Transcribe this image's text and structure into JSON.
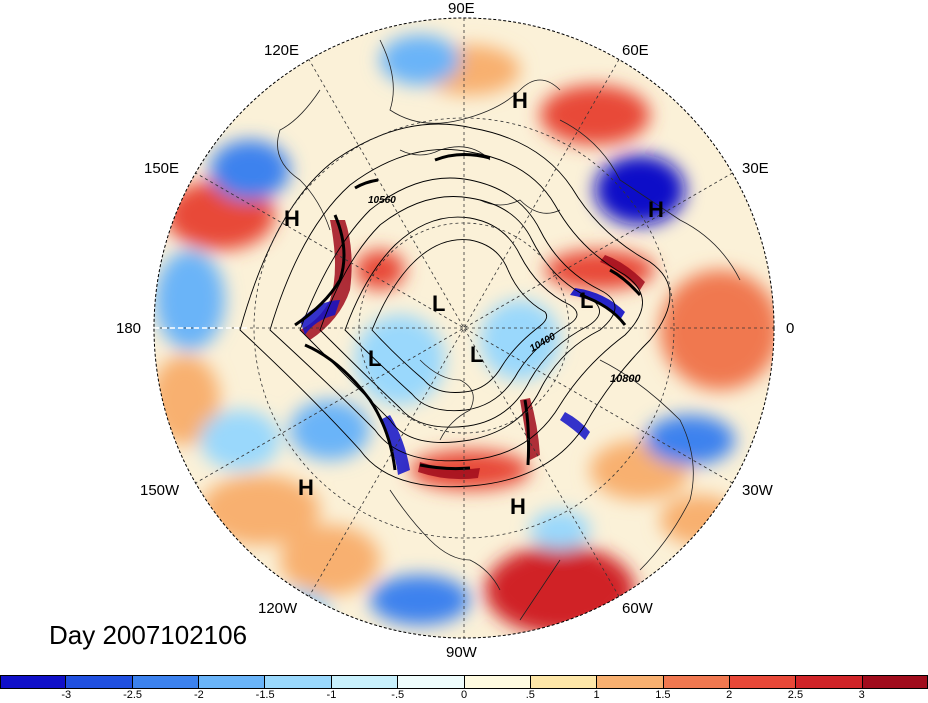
{
  "map": {
    "projection": "north-polar-stereographic",
    "day_label": "Day 2007102106",
    "longitude_labels": [
      "90E",
      "60E",
      "30E",
      "0",
      "30W",
      "60W",
      "90W",
      "120W",
      "150W",
      "180",
      "150E",
      "120E"
    ],
    "contour_labels": [
      "10560",
      "10400",
      "10800"
    ],
    "highs": [
      "H",
      "H",
      "H",
      "H",
      "H"
    ],
    "lows": [
      "L",
      "L",
      "L",
      "L"
    ]
  },
  "colorbar": {
    "colors": [
      "#1010c8",
      "#2050e0",
      "#3c82ee",
      "#6ab4f8",
      "#9ad8fc",
      "#c8f0fc",
      "#eefcfc",
      "#fefae0",
      "#fde6a8",
      "#f8b070",
      "#f07850",
      "#e84838",
      "#d02428",
      "#a00c1c"
    ],
    "tick_labels": [
      "-3",
      "-2.5",
      "-2",
      "-1.5",
      "-1",
      "-.5",
      "0",
      ".5",
      "1",
      "1.5",
      "2",
      "2.5",
      "3"
    ]
  }
}
